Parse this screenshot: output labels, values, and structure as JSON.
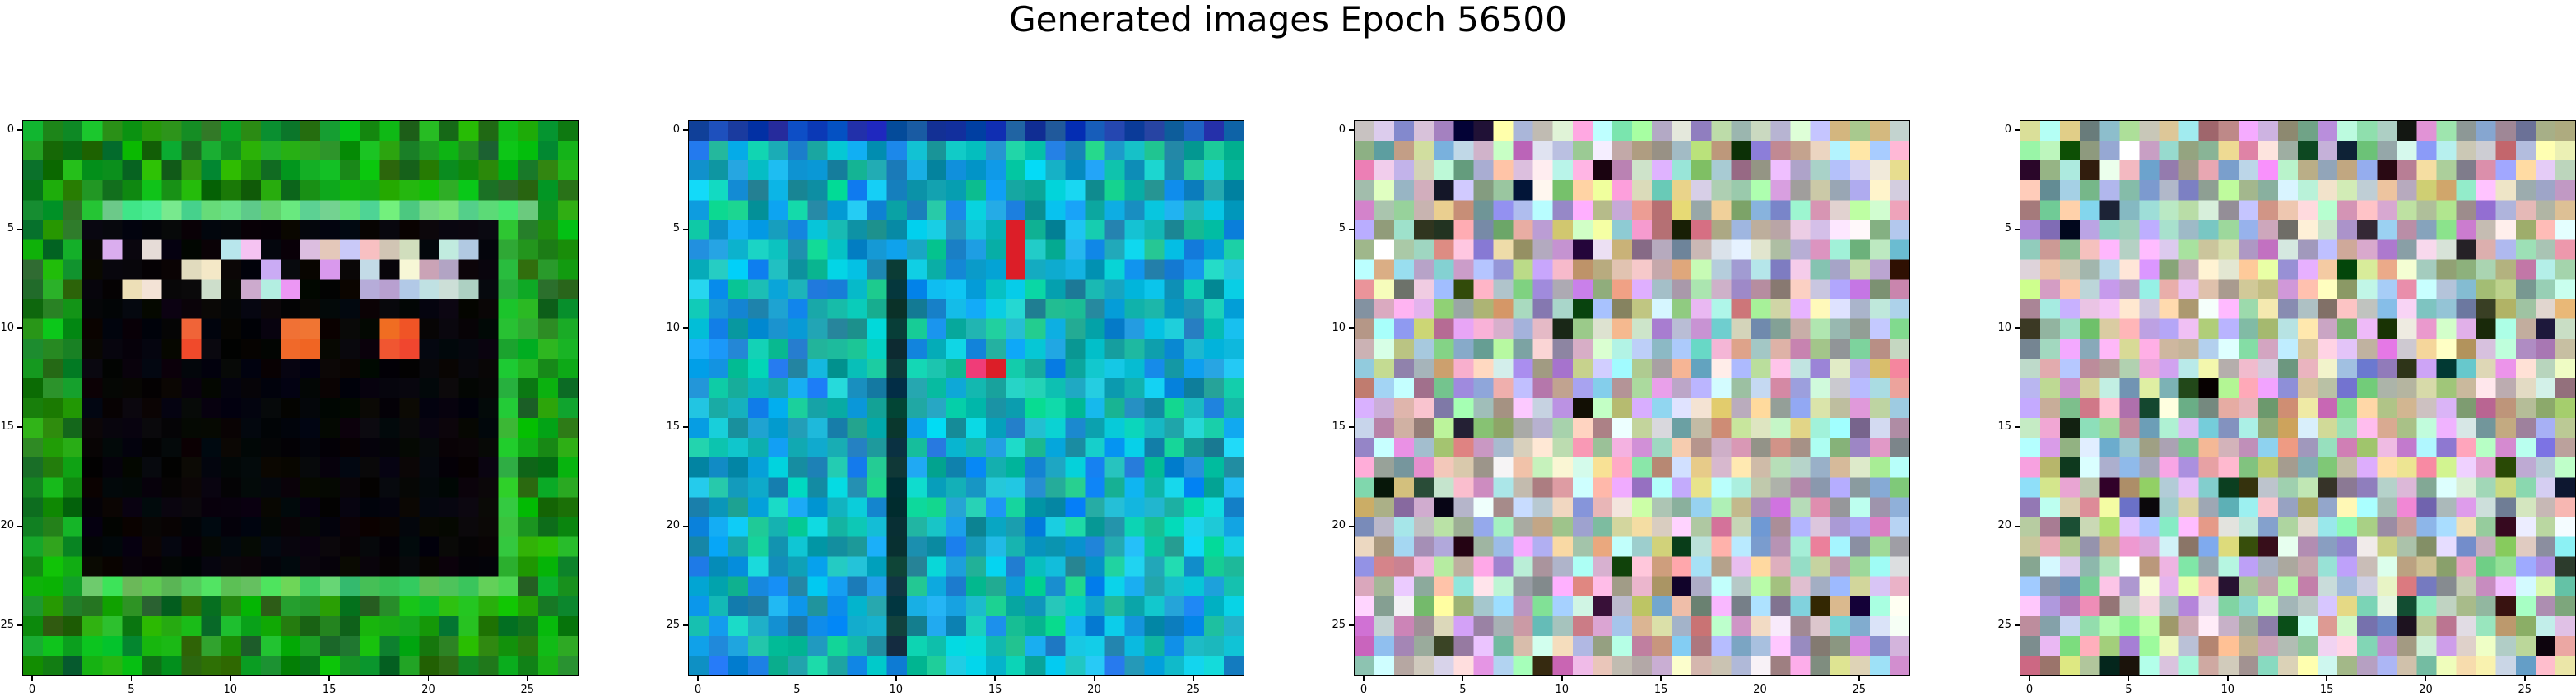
{
  "title": "Generated images Epoch 56500",
  "chart_data": {
    "type": "heatmap",
    "grid_size": 28,
    "xticks": [
      "0",
      "5",
      "10",
      "15",
      "20",
      "25"
    ],
    "yticks": [
      "0",
      "5",
      "10",
      "15",
      "20",
      "25"
    ],
    "xlim": [
      -0.5,
      27.5
    ],
    "ylim": [
      27.5,
      -0.5
    ],
    "panels": [
      {
        "description": "green frame around dark square with white and red pixels near top"
      },
      {
        "description": "teal and blue noise with dark vertical stripe"
      },
      {
        "description": "pastel multicolor noise"
      },
      {
        "description": "pastel multicolor noise with darker spots"
      }
    ]
  }
}
